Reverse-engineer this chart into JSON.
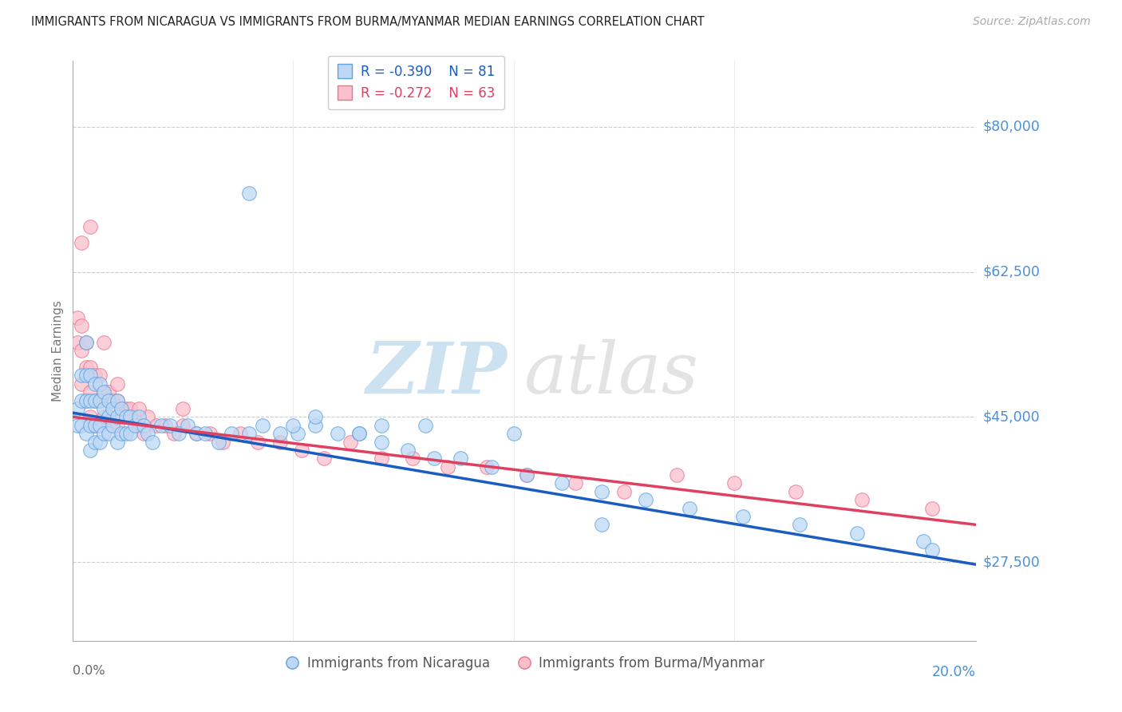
{
  "title": "IMMIGRANTS FROM NICARAGUA VS IMMIGRANTS FROM BURMA/MYANMAR MEDIAN EARNINGS CORRELATION CHART",
  "source": "Source: ZipAtlas.com",
  "ylabel": "Median Earnings",
  "y_ticks": [
    27500,
    45000,
    62500,
    80000
  ],
  "y_tick_labels": [
    "$27,500",
    "$45,000",
    "$62,500",
    "$80,000"
  ],
  "xlim": [
    0.0,
    0.205
  ],
  "ylim": [
    18000,
    88000
  ],
  "legend_label1": "Immigrants from Nicaragua",
  "legend_label2": "Immigrants from Burma/Myanmar",
  "R1": -0.39,
  "N1": 81,
  "R2": -0.272,
  "N2": 63,
  "color_blue_fill": "#BDD7F5",
  "color_blue_edge": "#5BA3E0",
  "color_pink_fill": "#F9C0CC",
  "color_pink_edge": "#F07090",
  "color_line_blue": "#1A5DBF",
  "color_line_pink": "#E04060",
  "color_right_labels": "#4A90D9",
  "watermark_color": "#cce0f0",
  "scatter1_x": [
    0.001,
    0.001,
    0.002,
    0.002,
    0.002,
    0.003,
    0.003,
    0.003,
    0.003,
    0.004,
    0.004,
    0.004,
    0.004,
    0.005,
    0.005,
    0.005,
    0.005,
    0.006,
    0.006,
    0.006,
    0.006,
    0.007,
    0.007,
    0.007,
    0.008,
    0.008,
    0.008,
    0.009,
    0.009,
    0.01,
    0.01,
    0.01,
    0.011,
    0.011,
    0.012,
    0.012,
    0.013,
    0.013,
    0.014,
    0.015,
    0.016,
    0.017,
    0.018,
    0.02,
    0.022,
    0.024,
    0.026,
    0.028,
    0.03,
    0.033,
    0.036,
    0.04,
    0.043,
    0.047,
    0.051,
    0.055,
    0.06,
    0.065,
    0.07,
    0.076,
    0.082,
    0.088,
    0.095,
    0.103,
    0.111,
    0.12,
    0.13,
    0.14,
    0.152,
    0.165,
    0.178,
    0.193,
    0.04,
    0.055,
    0.07,
    0.05,
    0.065,
    0.08,
    0.1,
    0.12,
    0.195
  ],
  "scatter1_y": [
    46000,
    44000,
    50000,
    47000,
    44000,
    54000,
    50000,
    47000,
    43000,
    50000,
    47000,
    44000,
    41000,
    49000,
    47000,
    44000,
    42000,
    49000,
    47000,
    44000,
    42000,
    48000,
    46000,
    43000,
    47000,
    45000,
    43000,
    46000,
    44000,
    47000,
    45000,
    42000,
    46000,
    43000,
    45000,
    43000,
    45000,
    43000,
    44000,
    45000,
    44000,
    43000,
    42000,
    44000,
    44000,
    43000,
    44000,
    43000,
    43000,
    42000,
    43000,
    43000,
    44000,
    43000,
    43000,
    44000,
    43000,
    43000,
    42000,
    41000,
    40000,
    40000,
    39000,
    38000,
    37000,
    36000,
    35000,
    34000,
    33000,
    32000,
    31000,
    30000,
    72000,
    45000,
    44000,
    44000,
    43000,
    44000,
    43000,
    32000,
    29000
  ],
  "scatter2_x": [
    0.001,
    0.001,
    0.002,
    0.002,
    0.002,
    0.003,
    0.003,
    0.003,
    0.004,
    0.004,
    0.004,
    0.005,
    0.005,
    0.005,
    0.006,
    0.006,
    0.006,
    0.007,
    0.007,
    0.008,
    0.008,
    0.009,
    0.009,
    0.01,
    0.01,
    0.011,
    0.012,
    0.013,
    0.014,
    0.015,
    0.016,
    0.017,
    0.019,
    0.021,
    0.023,
    0.025,
    0.028,
    0.031,
    0.034,
    0.038,
    0.042,
    0.047,
    0.052,
    0.057,
    0.063,
    0.07,
    0.077,
    0.085,
    0.094,
    0.103,
    0.114,
    0.125,
    0.137,
    0.15,
    0.164,
    0.179,
    0.195,
    0.002,
    0.004,
    0.007,
    0.01,
    0.015,
    0.025
  ],
  "scatter2_y": [
    57000,
    54000,
    56000,
    53000,
    49000,
    54000,
    51000,
    47000,
    51000,
    48000,
    45000,
    50000,
    47000,
    44000,
    50000,
    47000,
    44000,
    48000,
    45000,
    48000,
    45000,
    47000,
    44000,
    47000,
    44000,
    46000,
    46000,
    46000,
    45000,
    44000,
    43000,
    45000,
    44000,
    44000,
    43000,
    44000,
    43000,
    43000,
    42000,
    43000,
    42000,
    42000,
    41000,
    40000,
    42000,
    40000,
    40000,
    39000,
    39000,
    38000,
    37000,
    36000,
    38000,
    37000,
    36000,
    35000,
    34000,
    66000,
    68000,
    54000,
    49000,
    46000,
    46000
  ],
  "line1_x0": 0.0,
  "line1_y0": 45500,
  "line1_x1": 0.205,
  "line1_y1": 27200,
  "line2_x0": 0.0,
  "line2_y0": 45000,
  "line2_x1": 0.205,
  "line2_y1": 32000
}
